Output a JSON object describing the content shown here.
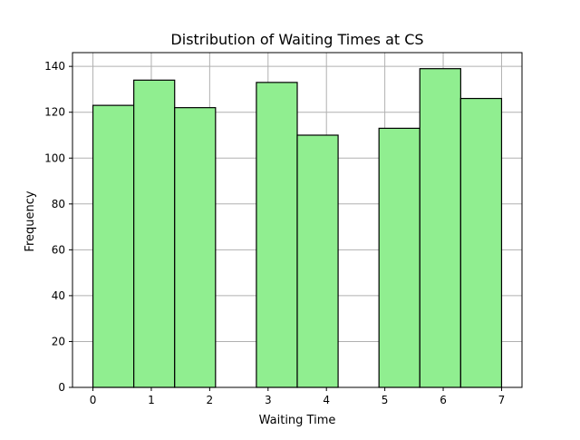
{
  "chart_data": {
    "type": "bar",
    "title": "Distribution of Waiting Times at CS",
    "xlabel": "Waiting Time",
    "ylabel": "Frequency",
    "xlim": [
      -0.35,
      7.35
    ],
    "ylim": [
      0,
      146
    ],
    "x_ticks": [
      0,
      1,
      2,
      3,
      4,
      5,
      6,
      7
    ],
    "y_ticks": [
      0,
      20,
      40,
      60,
      80,
      100,
      120,
      140
    ],
    "grid": true,
    "bins": [
      {
        "start": 0.0,
        "end": 0.7,
        "value": 123
      },
      {
        "start": 0.7,
        "end": 1.4,
        "value": 134
      },
      {
        "start": 1.4,
        "end": 2.1,
        "value": 122
      },
      {
        "start": 2.1,
        "end": 2.8,
        "value": 0
      },
      {
        "start": 2.8,
        "end": 3.5,
        "value": 133
      },
      {
        "start": 3.5,
        "end": 4.2,
        "value": 110
      },
      {
        "start": 4.2,
        "end": 4.9,
        "value": 0
      },
      {
        "start": 4.9,
        "end": 5.6,
        "value": 113
      },
      {
        "start": 5.6,
        "end": 6.3,
        "value": 139
      },
      {
        "start": 6.3,
        "end": 7.0,
        "value": 126
      }
    ],
    "colors": {
      "bar_fill": "#90ee90",
      "bar_edge": "#000000",
      "grid": "#b0b0b0",
      "axis": "#000000",
      "text": "#000000"
    }
  }
}
